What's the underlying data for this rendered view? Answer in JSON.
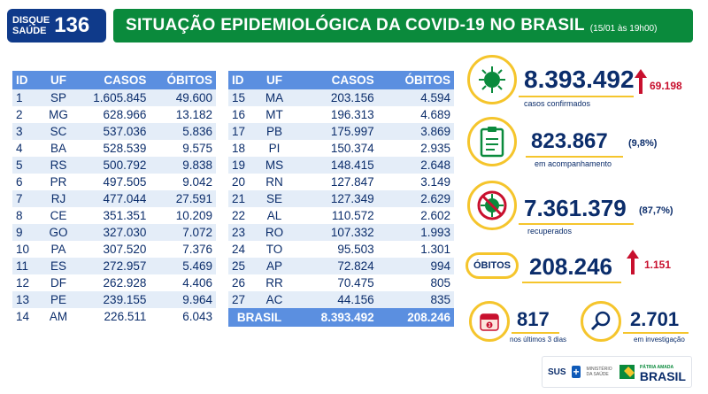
{
  "logo": {
    "line1": "DISQUE",
    "line2": "SAÚDE",
    "number": "136"
  },
  "header": {
    "title": "SITUAÇÃO EPIDEMIOLÓGICA DA COVID-19 NO BRASIL",
    "date": "(15/01 às 19h00)"
  },
  "table": {
    "headers": {
      "id": "ID",
      "uf": "UF",
      "casos": "CASOS",
      "obitos": "ÓBITOS"
    },
    "left": [
      {
        "id": "1",
        "uf": "SP",
        "casos": "1.605.845",
        "obitos": "49.600"
      },
      {
        "id": "2",
        "uf": "MG",
        "casos": "628.966",
        "obitos": "13.182"
      },
      {
        "id": "3",
        "uf": "SC",
        "casos": "537.036",
        "obitos": "5.836"
      },
      {
        "id": "4",
        "uf": "BA",
        "casos": "528.539",
        "obitos": "9.575"
      },
      {
        "id": "5",
        "uf": "RS",
        "casos": "500.792",
        "obitos": "9.838"
      },
      {
        "id": "6",
        "uf": "PR",
        "casos": "497.505",
        "obitos": "9.042"
      },
      {
        "id": "7",
        "uf": "RJ",
        "casos": "477.044",
        "obitos": "27.591"
      },
      {
        "id": "8",
        "uf": "CE",
        "casos": "351.351",
        "obitos": "10.209"
      },
      {
        "id": "9",
        "uf": "GO",
        "casos": "327.030",
        "obitos": "7.072"
      },
      {
        "id": "10",
        "uf": "PA",
        "casos": "307.520",
        "obitos": "7.376"
      },
      {
        "id": "11",
        "uf": "ES",
        "casos": "272.957",
        "obitos": "5.469"
      },
      {
        "id": "12",
        "uf": "DF",
        "casos": "262.928",
        "obitos": "4.406"
      },
      {
        "id": "13",
        "uf": "PE",
        "casos": "239.155",
        "obitos": "9.964"
      },
      {
        "id": "14",
        "uf": "AM",
        "casos": "226.511",
        "obitos": "6.043"
      }
    ],
    "right": [
      {
        "id": "15",
        "uf": "MA",
        "casos": "203.156",
        "obitos": "4.594"
      },
      {
        "id": "16",
        "uf": "MT",
        "casos": "196.313",
        "obitos": "4.689"
      },
      {
        "id": "17",
        "uf": "PB",
        "casos": "175.997",
        "obitos": "3.869"
      },
      {
        "id": "18",
        "uf": "PI",
        "casos": "150.374",
        "obitos": "2.935"
      },
      {
        "id": "19",
        "uf": "MS",
        "casos": "148.415",
        "obitos": "2.648"
      },
      {
        "id": "20",
        "uf": "RN",
        "casos": "127.847",
        "obitos": "3.149"
      },
      {
        "id": "21",
        "uf": "SE",
        "casos": "127.349",
        "obitos": "2.629"
      },
      {
        "id": "22",
        "uf": "AL",
        "casos": "110.572",
        "obitos": "2.602"
      },
      {
        "id": "23",
        "uf": "RO",
        "casos": "107.332",
        "obitos": "1.993"
      },
      {
        "id": "24",
        "uf": "TO",
        "casos": "95.503",
        "obitos": "1.301"
      },
      {
        "id": "25",
        "uf": "AP",
        "casos": "72.824",
        "obitos": "994"
      },
      {
        "id": "26",
        "uf": "RR",
        "casos": "70.475",
        "obitos": "805"
      },
      {
        "id": "27",
        "uf": "AC",
        "casos": "44.156",
        "obitos": "835"
      }
    ],
    "total": {
      "label": "BRASIL",
      "casos": "8.393.492",
      "obitos": "208.246"
    }
  },
  "stats": {
    "confirmed": {
      "value": "8.393.492",
      "delta": "69.198",
      "label": "casos confirmados",
      "icon": "virus-icon"
    },
    "monitoring": {
      "value": "823.867",
      "pct": "(9,8%)",
      "label": "em acompanhamento",
      "icon": "clipboard-icon"
    },
    "recovered": {
      "value": "7.361.379",
      "pct": "(87,7%)",
      "label": "recuperados",
      "icon": "crossed-virus-icon"
    },
    "deaths": {
      "badge": "ÓBITOS",
      "value": "208.246",
      "delta": "1.151"
    },
    "last3days": {
      "value": "817",
      "label": "nos últimos 3 dias",
      "icon": "calendar-icon"
    },
    "investigation": {
      "value": "2.701",
      "label": "em investigação",
      "icon": "magnifier-icon"
    }
  },
  "footer": {
    "sus": "SUS",
    "ministry": "MINISTÉRIO DA SAÚDE",
    "slogan": "PÁTRIA AMADA",
    "brand": "BRASIL"
  },
  "colors": {
    "green": "#0a8a3c",
    "navy": "#0b2d6b",
    "blue": "#5b8fe0",
    "yellow": "#f5c52c",
    "red": "#c8102e"
  }
}
